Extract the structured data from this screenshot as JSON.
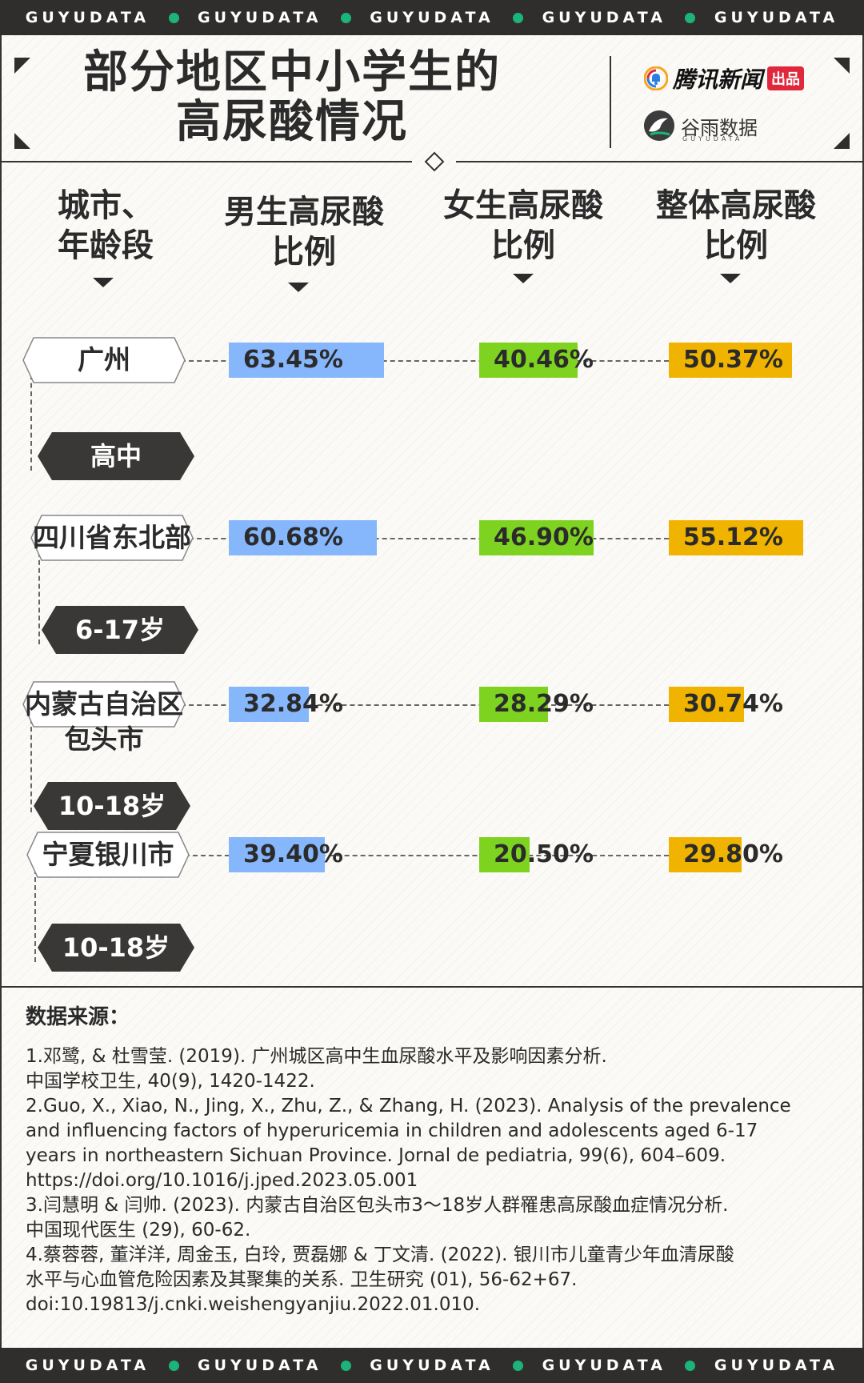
{
  "band_words": [
    "GUYUDATA",
    "GUYUDATA",
    "GUYUDATA",
    "GUYUDATA",
    "GUYUDATA"
  ],
  "colors": {
    "band": "#2f2e2d",
    "band_dot": "#1bb57a",
    "boys": "#86b6fb",
    "girls": "#7ed320",
    "overall": "#f0b400",
    "dark_tag": "#3a3836"
  },
  "title_lines": [
    "部分地区中小学生的",
    "高尿酸情况"
  ],
  "logos": {
    "tencent_news": "腾讯新闻",
    "tencent_badge": "出品",
    "guyu": "谷雨数据",
    "guyu_sub": "GUYUDATA"
  },
  "icons": [
    "bell-icon",
    "bird-icon",
    "diamond-icon",
    "chevron-down-icon"
  ],
  "column_headers": [
    [
      "城市、",
      "年龄段"
    ],
    [
      "男生高尿酸",
      "比例"
    ],
    [
      "女生高尿酸",
      "比例"
    ],
    [
      "整体高尿酸",
      "比例"
    ]
  ],
  "chart_data": {
    "type": "bar",
    "title": "部分地区中小学生的高尿酸情况",
    "categories": [
      "广州 高中",
      "四川省东北部 6-17岁",
      "内蒙古自治区包头市 10-18岁",
      "宁夏银川市 10-18岁"
    ],
    "series": [
      {
        "name": "男生高尿酸比例",
        "values": [
          63.45,
          60.68,
          32.84,
          39.4
        ]
      },
      {
        "name": "女生高尿酸比例",
        "values": [
          40.46,
          46.9,
          28.29,
          20.5
        ]
      },
      {
        "name": "整体高尿酸比例",
        "values": [
          50.37,
          55.12,
          30.74,
          29.8
        ]
      }
    ],
    "unit": "%",
    "rows": [
      {
        "city_lines": [
          "广州"
        ],
        "age": "高中",
        "labels": [
          "63.45%",
          "40.46%",
          "50.37%"
        ]
      },
      {
        "city_lines": [
          "四川省东北部"
        ],
        "age": "6-17岁",
        "labels": [
          "60.68%",
          "46.90%",
          "55.12%"
        ]
      },
      {
        "city_lines": [
          "内蒙古自治区",
          "包头市"
        ],
        "age": "10-18岁",
        "labels": [
          "32.84%",
          "28.29%",
          "30.74%"
        ]
      },
      {
        "city_lines": [
          "宁夏银川市"
        ],
        "age": "10-18岁",
        "labels": [
          "39.40%",
          "20.50%",
          "29.80%"
        ]
      }
    ]
  },
  "sources": {
    "heading": "数据来源：",
    "lines": [
      "1.邓鹭, & 杜雪莹. (2019). 广州城区高中生血尿酸水平及影响因素分析.",
      "中国学校卫生, 40(9), 1420-1422.",
      "2.Guo, X., Xiao, N., Jing, X., Zhu, Z., & Zhang, H. (2023). Analysis of the prevalence",
      "and influencing factors of hyperuricemia in children and adolescents aged 6-17",
      "years in northeastern Sichuan Province. Jornal de pediatria, 99(6), 604–609.",
      "https://doi.org/10.1016/j.jped.2023.05.001",
      "3.闫慧明 & 闫帅. (2023). 内蒙古自治区包头市3～18岁人群罹患高尿酸血症情况分析.",
      "中国现代医生 (29), 60-62.",
      "4.蔡蓉蓉, 董洋洋, 周金玉, 白玲, 贾磊娜 &  丁文清. (2022). 银川市儿童青少年血清尿酸",
      "水平与心血管危险因素及其聚集的关系. 卫生研究 (01), 56-62+67.",
      "doi:10.19813/j.cnki.weishengyanjiu.2022.01.010."
    ]
  }
}
